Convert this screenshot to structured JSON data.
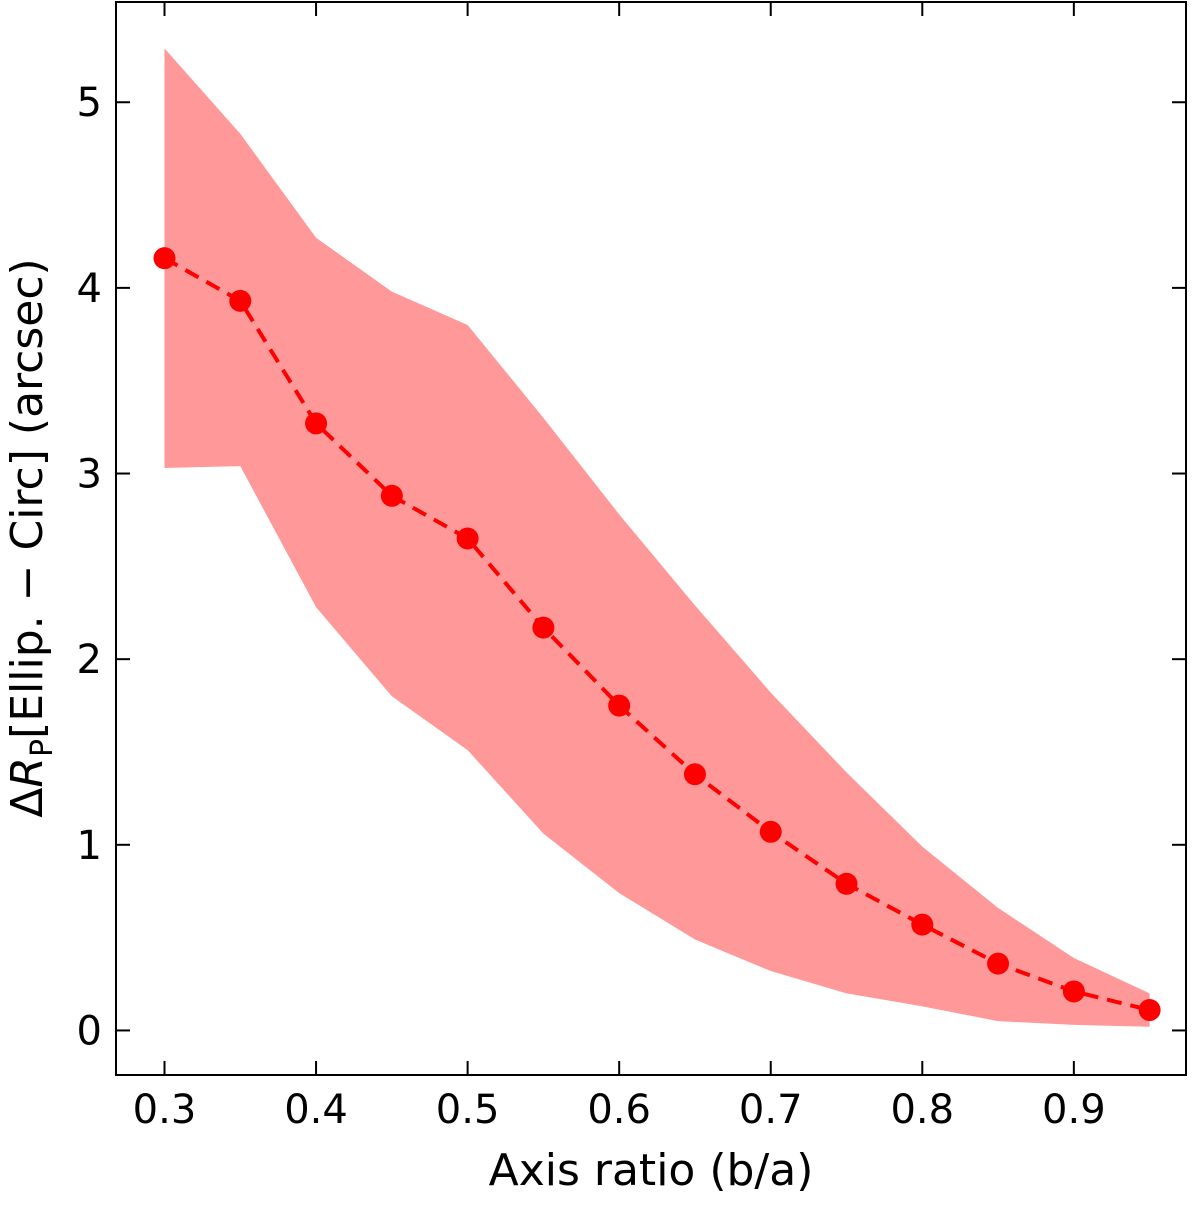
{
  "chart_data": {
    "type": "line",
    "xlabel": "Axis ratio (b/a)",
    "ylabel": [
      "Δ",
      "R",
      "P",
      "[Ellip. − Circ] (arcsec)"
    ],
    "x": [
      0.3,
      0.35,
      0.4,
      0.45,
      0.5,
      0.55,
      0.6,
      0.65,
      0.7,
      0.75,
      0.8,
      0.85,
      0.9,
      0.95
    ],
    "series": [
      {
        "color": "#ff0000",
        "band_color": "#ff9999",
        "values": [
          4.16,
          3.93,
          3.27,
          2.88,
          2.65,
          2.17,
          1.75,
          1.38,
          1.07,
          0.79,
          0.57,
          0.36,
          0.21,
          0.11
        ],
        "upper": [
          5.29,
          4.83,
          4.27,
          3.98,
          3.8,
          3.3,
          2.78,
          2.29,
          1.82,
          1.39,
          0.99,
          0.66,
          0.39,
          0.2
        ],
        "lower": [
          3.03,
          3.04,
          2.28,
          1.8,
          1.51,
          1.06,
          0.74,
          0.49,
          0.32,
          0.2,
          0.13,
          0.05,
          0.03,
          0.02
        ]
      }
    ],
    "xlim": [
      0.268,
      0.974
    ],
    "ylim": [
      -0.24,
      5.54
    ],
    "xticks": [
      0.3,
      0.4,
      0.5,
      0.6,
      0.7,
      0.8,
      0.9
    ],
    "yticks": [
      0,
      1,
      2,
      3,
      4,
      5
    ],
    "grid": false
  }
}
